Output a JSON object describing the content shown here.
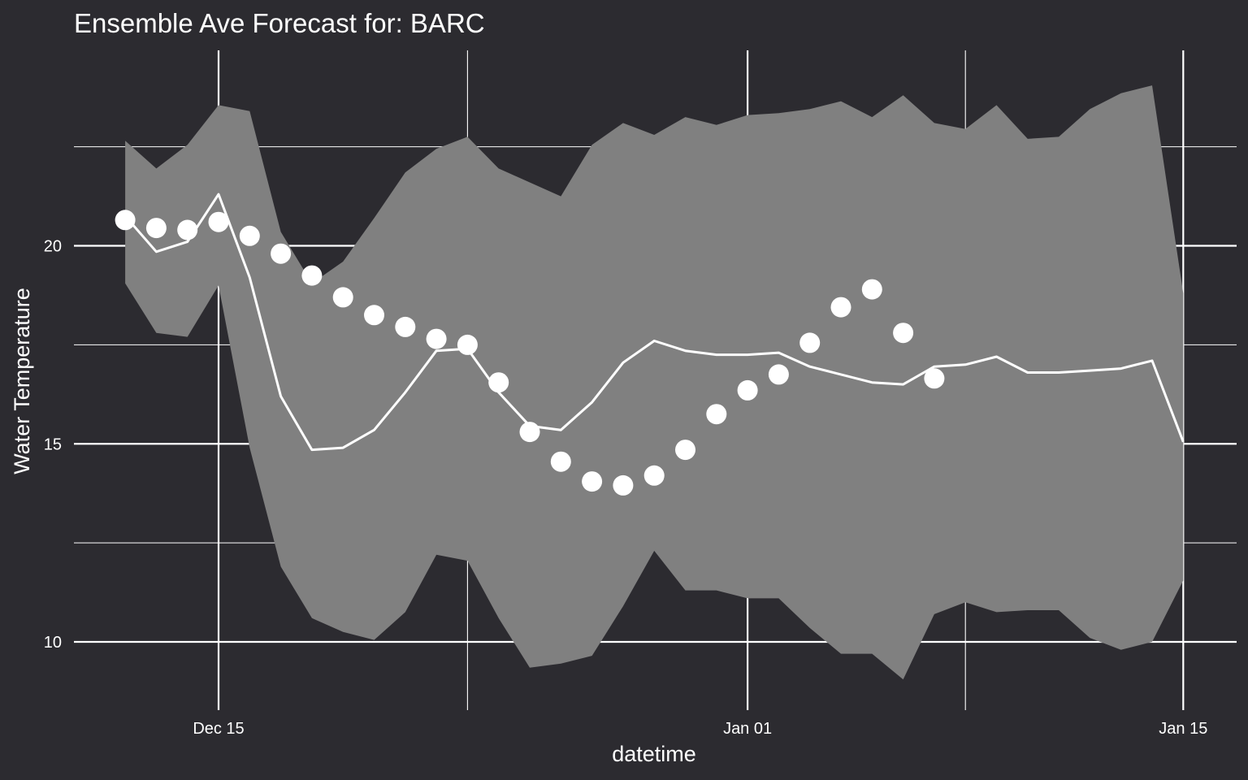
{
  "chart_data": {
    "type": "line",
    "title": "Ensemble Ave Forecast for: BARC",
    "xlabel": "datetime",
    "ylabel": "Water Temperature",
    "x_ticks": [
      "Dec 15",
      "Jan 01",
      "Jan 15"
    ],
    "y_ticks": [
      "10",
      "15",
      "20"
    ],
    "ylim": [
      8.55,
      24.98
    ],
    "grid": true,
    "colors": {
      "background": "#2c2b30",
      "band": "#808080",
      "line": "#ffffff",
      "points": "#ffffff",
      "grid": "#ffffff"
    },
    "series": [
      {
        "type": "ribbon",
        "x": [
          "2023-12-12",
          "2023-12-13",
          "2023-12-14",
          "2023-12-15",
          "2023-12-16",
          "2023-12-17",
          "2023-12-18",
          "2023-12-19",
          "2023-12-20",
          "2023-12-21",
          "2023-12-22",
          "2023-12-23",
          "2023-12-24",
          "2023-12-25",
          "2023-12-26",
          "2023-12-27",
          "2023-12-28",
          "2023-12-29",
          "2023-12-30",
          "2023-12-31",
          "2024-01-01",
          "2024-01-02",
          "2024-01-03",
          "2024-01-04",
          "2024-01-05",
          "2024-01-06",
          "2024-01-07",
          "2024-01-08",
          "2024-01-09",
          "2024-01-10",
          "2024-01-11",
          "2024-01-12",
          "2024-01-13",
          "2024-01-14",
          "2024-01-15"
        ],
        "lower": [
          19.05,
          17.8,
          17.7,
          19.0,
          14.9,
          11.9,
          10.6,
          10.25,
          10.05,
          10.75,
          12.2,
          12.05,
          10.6,
          9.35,
          9.45,
          9.65,
          10.9,
          12.3,
          11.3,
          11.3,
          11.1,
          11.1,
          10.35,
          9.7,
          9.7,
          9.05,
          10.7,
          11.0,
          10.75,
          10.8,
          10.8,
          10.1,
          9.8,
          10.0,
          11.55
        ],
        "upper": [
          22.65,
          21.95,
          22.55,
          23.55,
          23.4,
          20.35,
          19.05,
          19.6,
          20.7,
          21.85,
          22.45,
          22.75,
          21.95,
          21.6,
          21.25,
          22.55,
          23.1,
          22.8,
          23.25,
          23.05,
          23.3,
          23.35,
          23.45,
          23.65,
          23.25,
          23.8,
          23.1,
          22.95,
          23.55,
          22.7,
          22.75,
          23.45,
          23.85,
          24.05,
          18.8
        ]
      },
      {
        "type": "line",
        "x": [
          "2023-12-12",
          "2023-12-13",
          "2023-12-14",
          "2023-12-15",
          "2023-12-16",
          "2023-12-17",
          "2023-12-18",
          "2023-12-19",
          "2023-12-20",
          "2023-12-21",
          "2023-12-22",
          "2023-12-23",
          "2023-12-24",
          "2023-12-25",
          "2023-12-26",
          "2023-12-27",
          "2023-12-28",
          "2023-12-29",
          "2023-12-30",
          "2023-12-31",
          "2024-01-01",
          "2024-01-02",
          "2024-01-03",
          "2024-01-04",
          "2024-01-05",
          "2024-01-06",
          "2024-01-07",
          "2024-01-08",
          "2024-01-09",
          "2024-01-10",
          "2024-01-11",
          "2024-01-12",
          "2024-01-13",
          "2024-01-14",
          "2024-01-15"
        ],
        "y": [
          20.75,
          19.85,
          20.1,
          21.3,
          19.2,
          16.2,
          14.85,
          14.9,
          15.35,
          16.3,
          17.35,
          17.4,
          16.3,
          15.45,
          15.35,
          16.05,
          17.05,
          17.6,
          17.35,
          17.25,
          17.25,
          17.3,
          16.95,
          16.75,
          16.55,
          16.5,
          16.95,
          17.0,
          17.2,
          16.8,
          16.8,
          16.85,
          16.9,
          17.1,
          15.05
        ]
      },
      {
        "type": "scatter",
        "x": [
          "2023-12-12",
          "2023-12-13",
          "2023-12-14",
          "2023-12-15",
          "2023-12-16",
          "2023-12-17",
          "2023-12-18",
          "2023-12-19",
          "2023-12-20",
          "2023-12-21",
          "2023-12-22",
          "2023-12-23",
          "2023-12-24",
          "2023-12-25",
          "2023-12-26",
          "2023-12-27",
          "2023-12-28",
          "2023-12-29",
          "2023-12-30",
          "2023-12-31",
          "2024-01-01",
          "2024-01-02",
          "2024-01-03",
          "2024-01-04",
          "2024-01-05",
          "2024-01-06",
          "2024-01-07"
        ],
        "y": [
          20.65,
          20.45,
          20.4,
          20.6,
          20.25,
          19.8,
          19.25,
          18.7,
          18.25,
          17.95,
          17.65,
          17.5,
          16.55,
          15.3,
          14.55,
          14.05,
          13.95,
          14.2,
          14.85,
          15.75,
          16.35,
          16.75,
          17.55,
          18.45,
          18.9,
          17.8,
          16.65
        ]
      }
    ]
  }
}
